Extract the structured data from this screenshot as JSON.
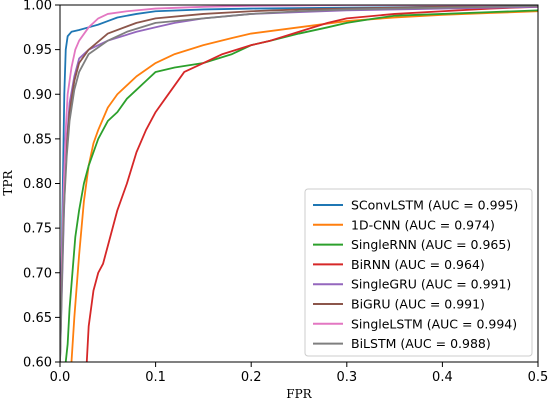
{
  "chart_data": {
    "type": "line",
    "title": "",
    "xlabel": "FPR",
    "ylabel": "TPR",
    "xlim": [
      0,
      0.5
    ],
    "ylim": [
      0.6,
      1.0
    ],
    "grid": false,
    "legend_position": "bottom-right",
    "x_ticks": [
      {
        "value": 0.0,
        "label": "0.0"
      },
      {
        "value": 0.1,
        "label": "0.1"
      },
      {
        "value": 0.2,
        "label": "0.2"
      },
      {
        "value": 0.3,
        "label": "0.3"
      },
      {
        "value": 0.4,
        "label": "0.4"
      },
      {
        "value": 0.5,
        "label": "0.5"
      }
    ],
    "y_ticks": [
      {
        "value": 0.6,
        "label": "0.60"
      },
      {
        "value": 0.65,
        "label": "0.65"
      },
      {
        "value": 0.7,
        "label": "0.70"
      },
      {
        "value": 0.75,
        "label": "0.75"
      },
      {
        "value": 0.8,
        "label": "0.80"
      },
      {
        "value": 0.85,
        "label": "0.85"
      },
      {
        "value": 0.9,
        "label": "0.90"
      },
      {
        "value": 0.95,
        "label": "0.95"
      },
      {
        "value": 1.0,
        "label": "1.00"
      }
    ],
    "series": [
      {
        "name": "SConvLSTM (AUC = 0.995)",
        "color": "#1f77b4",
        "x": [
          0.0,
          0.0015,
          0.003,
          0.0045,
          0.006,
          0.008,
          0.012,
          0.02,
          0.03,
          0.04,
          0.05,
          0.06,
          0.08,
          0.1,
          0.15,
          0.2,
          0.3,
          0.4,
          0.5
        ],
        "y": [
          0.6,
          0.7,
          0.8,
          0.9,
          0.95,
          0.965,
          0.97,
          0.972,
          0.975,
          0.978,
          0.982,
          0.986,
          0.99,
          0.993,
          0.995,
          0.996,
          0.997,
          0.998,
          0.999
        ]
      },
      {
        "name": "1D-CNN (AUC = 0.974)",
        "color": "#ff7f0e",
        "x": [
          0.012,
          0.015,
          0.02,
          0.025,
          0.03,
          0.035,
          0.04,
          0.05,
          0.06,
          0.07,
          0.08,
          0.1,
          0.12,
          0.15,
          0.18,
          0.2,
          0.25,
          0.3,
          0.35,
          0.4,
          0.45,
          0.5
        ],
        "y": [
          0.6,
          0.65,
          0.72,
          0.78,
          0.82,
          0.845,
          0.86,
          0.885,
          0.9,
          0.91,
          0.92,
          0.935,
          0.945,
          0.955,
          0.963,
          0.968,
          0.975,
          0.982,
          0.986,
          0.989,
          0.991,
          0.993
        ]
      },
      {
        "name": "SingleRNN (AUC = 0.965)",
        "color": "#2ca02c",
        "x": [
          0.006,
          0.008,
          0.01,
          0.013,
          0.016,
          0.02,
          0.025,
          0.03,
          0.04,
          0.05,
          0.06,
          0.07,
          0.08,
          0.09,
          0.1,
          0.12,
          0.15,
          0.18,
          0.2,
          0.22,
          0.25,
          0.28,
          0.3,
          0.33,
          0.35,
          0.4,
          0.45,
          0.5
        ],
        "y": [
          0.6,
          0.62,
          0.66,
          0.7,
          0.74,
          0.77,
          0.8,
          0.82,
          0.85,
          0.87,
          0.88,
          0.895,
          0.905,
          0.915,
          0.925,
          0.93,
          0.935,
          0.945,
          0.955,
          0.96,
          0.968,
          0.975,
          0.98,
          0.985,
          0.988,
          0.99,
          0.992,
          0.994
        ]
      },
      {
        "name": "BiRNN (AUC = 0.964)",
        "color": "#d62728",
        "x": [
          0.028,
          0.03,
          0.035,
          0.04,
          0.045,
          0.05,
          0.06,
          0.07,
          0.08,
          0.09,
          0.1,
          0.11,
          0.12,
          0.13,
          0.15,
          0.17,
          0.2,
          0.22,
          0.25,
          0.28,
          0.3,
          0.35,
          0.4,
          0.45,
          0.5
        ],
        "y": [
          0.6,
          0.64,
          0.68,
          0.7,
          0.71,
          0.73,
          0.77,
          0.8,
          0.835,
          0.86,
          0.88,
          0.895,
          0.91,
          0.925,
          0.935,
          0.945,
          0.955,
          0.96,
          0.97,
          0.98,
          0.985,
          0.99,
          0.993,
          0.996,
          0.998
        ]
      },
      {
        "name": "SingleGRU (AUC = 0.991)",
        "color": "#9467bd",
        "x": [
          0.0,
          0.002,
          0.004,
          0.006,
          0.01,
          0.015,
          0.02,
          0.03,
          0.05,
          0.08,
          0.1,
          0.12,
          0.15,
          0.2,
          0.25,
          0.3,
          0.4,
          0.5
        ],
        "y": [
          0.6,
          0.68,
          0.76,
          0.83,
          0.89,
          0.92,
          0.94,
          0.95,
          0.96,
          0.97,
          0.975,
          0.98,
          0.985,
          0.99,
          0.992,
          0.994,
          0.996,
          0.998
        ]
      },
      {
        "name": "BiGRU (AUC = 0.991)",
        "color": "#8c564b",
        "x": [
          0.0,
          0.002,
          0.004,
          0.007,
          0.01,
          0.015,
          0.02,
          0.03,
          0.05,
          0.08,
          0.1,
          0.15,
          0.2,
          0.25,
          0.3,
          0.4,
          0.5
        ],
        "y": [
          0.6,
          0.7,
          0.78,
          0.84,
          0.88,
          0.915,
          0.935,
          0.95,
          0.968,
          0.98,
          0.985,
          0.99,
          0.993,
          0.995,
          0.996,
          0.998,
          0.999
        ]
      },
      {
        "name": "SingleLSTM (AUC = 0.994)",
        "color": "#e377c2",
        "x": [
          0.0,
          0.002,
          0.004,
          0.006,
          0.008,
          0.012,
          0.016,
          0.02,
          0.03,
          0.04,
          0.05,
          0.07,
          0.1,
          0.15,
          0.2,
          0.3,
          0.4,
          0.5
        ],
        "y": [
          0.6,
          0.72,
          0.8,
          0.86,
          0.9,
          0.93,
          0.95,
          0.96,
          0.975,
          0.985,
          0.99,
          0.993,
          0.996,
          0.998,
          0.999,
          1.0,
          1.0,
          1.0
        ]
      },
      {
        "name": "BiLSTM (AUC = 0.988)",
        "color": "#7f7f7f",
        "x": [
          0.0,
          0.002,
          0.004,
          0.007,
          0.01,
          0.015,
          0.02,
          0.03,
          0.05,
          0.07,
          0.1,
          0.15,
          0.2,
          0.25,
          0.3,
          0.4,
          0.5
        ],
        "y": [
          0.6,
          0.69,
          0.77,
          0.83,
          0.87,
          0.905,
          0.925,
          0.945,
          0.96,
          0.97,
          0.98,
          0.985,
          0.99,
          0.993,
          0.995,
          0.997,
          0.999
        ]
      }
    ]
  }
}
